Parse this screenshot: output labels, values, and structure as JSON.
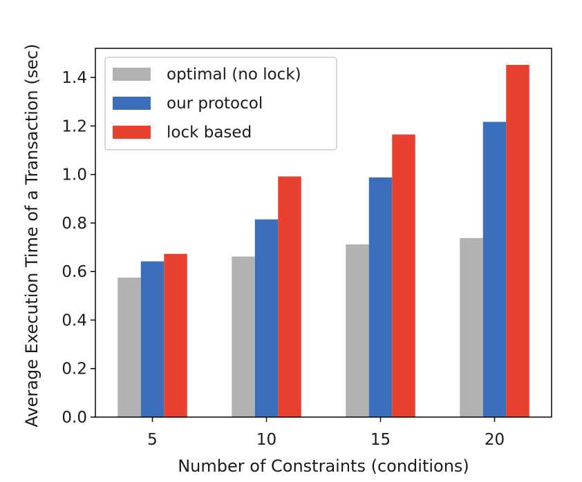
{
  "chart_data": {
    "type": "bar",
    "title": "",
    "xlabel": "Number of Constraints (conditions)",
    "ylabel": "Average Execution Time of a Transaction (sec)",
    "categories": [
      "5",
      "10",
      "15",
      "20"
    ],
    "ylim": [
      0,
      1.52
    ],
    "yticks": [
      0.0,
      0.2,
      0.4,
      0.6,
      0.8,
      1.0,
      1.2,
      1.4
    ],
    "ytick_labels": [
      "0.0",
      "0.2",
      "0.4",
      "0.6",
      "0.8",
      "1.0",
      "1.2",
      "1.4"
    ],
    "grid": false,
    "legend_position": "top-left",
    "series": [
      {
        "name": "optimal (no lock)",
        "color": "#b2b2b2",
        "values": [
          0.575,
          0.662,
          0.712,
          0.738
        ]
      },
      {
        "name": "our protocol",
        "color": "#3b6fbb",
        "values": [
          0.642,
          0.815,
          0.988,
          1.217
        ]
      },
      {
        "name": "lock based",
        "color": "#e8412f",
        "values": [
          0.673,
          0.992,
          1.165,
          1.452
        ]
      }
    ]
  }
}
